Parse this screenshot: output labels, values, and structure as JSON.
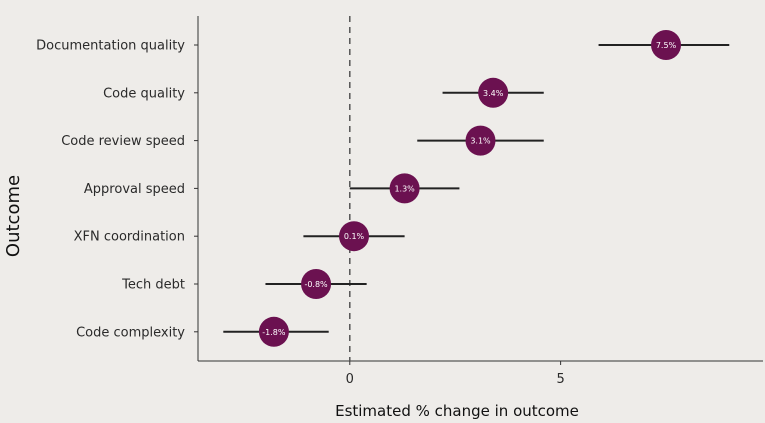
{
  "chart_data": {
    "type": "forest",
    "xlabel": "Estimated % change in outcome",
    "ylabel": "Outcome",
    "xlim": [
      -3.6,
      9.8
    ],
    "xticks": [
      0,
      5
    ],
    "xtick_labels": [
      "0",
      "5"
    ],
    "reference_line": 0,
    "grid": false,
    "colors": {
      "point": "#6b1150",
      "interval": "#222222",
      "reference": "#555555"
    },
    "rows": [
      {
        "label": "Documentation quality",
        "estimate": 7.5,
        "lower": 5.9,
        "upper": 9.0,
        "value_label": "7.5%"
      },
      {
        "label": "Code quality",
        "estimate": 3.4,
        "lower": 2.2,
        "upper": 4.6,
        "value_label": "3.4%"
      },
      {
        "label": "Code review speed",
        "estimate": 3.1,
        "lower": 1.6,
        "upper": 4.6,
        "value_label": "3.1%"
      },
      {
        "label": "Approval speed",
        "estimate": 1.3,
        "lower": 0.0,
        "upper": 2.6,
        "value_label": "1.3%"
      },
      {
        "label": "XFN coordination",
        "estimate": 0.1,
        "lower": -1.1,
        "upper": 1.3,
        "value_label": "0.1%"
      },
      {
        "label": "Tech debt",
        "estimate": -0.8,
        "lower": -2.0,
        "upper": 0.4,
        "value_label": "-0.8%"
      },
      {
        "label": "Code complexity",
        "estimate": -1.8,
        "lower": -3.0,
        "upper": -0.5,
        "value_label": "-1.8%"
      }
    ]
  }
}
